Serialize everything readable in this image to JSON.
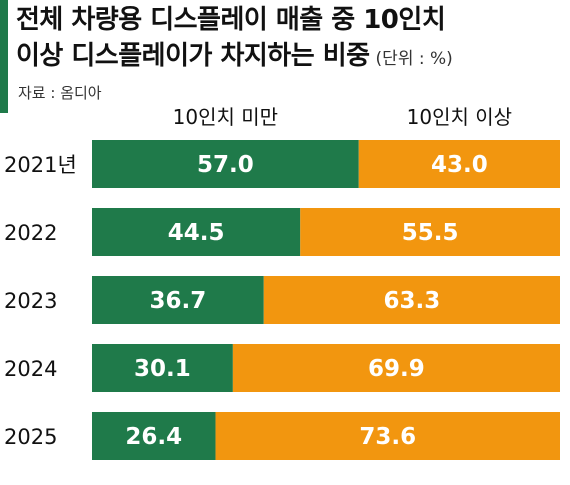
{
  "title": {
    "line1": "전체 차량용 디스플레이 매출 중 10인치",
    "line2": "이상 디스플레이가 차지하는 비중",
    "unit": "(단위 : %)"
  },
  "source": "자료 : 옴디아",
  "colors": {
    "accent": "#1f7a4a",
    "under10": "#1f7a4a",
    "over10": "#f2960f",
    "bar_text": "#ffffff",
    "axis_text": "#111111"
  },
  "chart_data": {
    "type": "bar",
    "orientation": "horizontal",
    "stacked": true,
    "categories": [
      "2021년",
      "2022",
      "2023",
      "2024",
      "2025"
    ],
    "series": [
      {
        "name": "10인치 미만",
        "values": [
          57.0,
          44.5,
          36.7,
          30.1,
          26.4
        ]
      },
      {
        "name": "10인치 이상",
        "values": [
          43.0,
          55.5,
          63.3,
          69.9,
          73.6
        ]
      }
    ],
    "xlim": [
      0,
      100
    ],
    "legend_position": "top",
    "grid": false
  }
}
